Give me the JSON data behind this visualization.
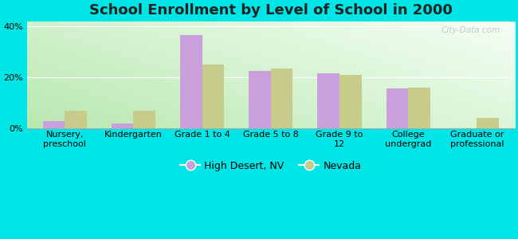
{
  "title": "School Enrollment by Level of School in 2000",
  "categories": [
    "Nursery,\npreschool",
    "Kindergarten",
    "Grade 1 to 4",
    "Grade 5 to 8",
    "Grade 9 to\n12",
    "College\nundergrad",
    "Graduate or\nprofessional"
  ],
  "high_desert": [
    3.0,
    2.0,
    36.5,
    22.5,
    21.5,
    15.5,
    0.0
  ],
  "nevada": [
    7.0,
    7.0,
    25.0,
    23.5,
    21.0,
    16.0,
    4.0
  ],
  "high_desert_color": "#c9a0dc",
  "nevada_color": "#c8cc8a",
  "background_color": "#00e5e5",
  "grad_color_bottomleft": "#b8e8b0",
  "grad_color_topright": "#f5fff5",
  "yticks": [
    0,
    20,
    40
  ],
  "ylim": [
    0,
    42
  ],
  "legend_labels": [
    "High Desert, NV",
    "Nevada"
  ],
  "watermark": "City-Data.com",
  "title_fontsize": 13,
  "tick_fontsize": 8,
  "legend_fontsize": 9,
  "bar_width": 0.32
}
